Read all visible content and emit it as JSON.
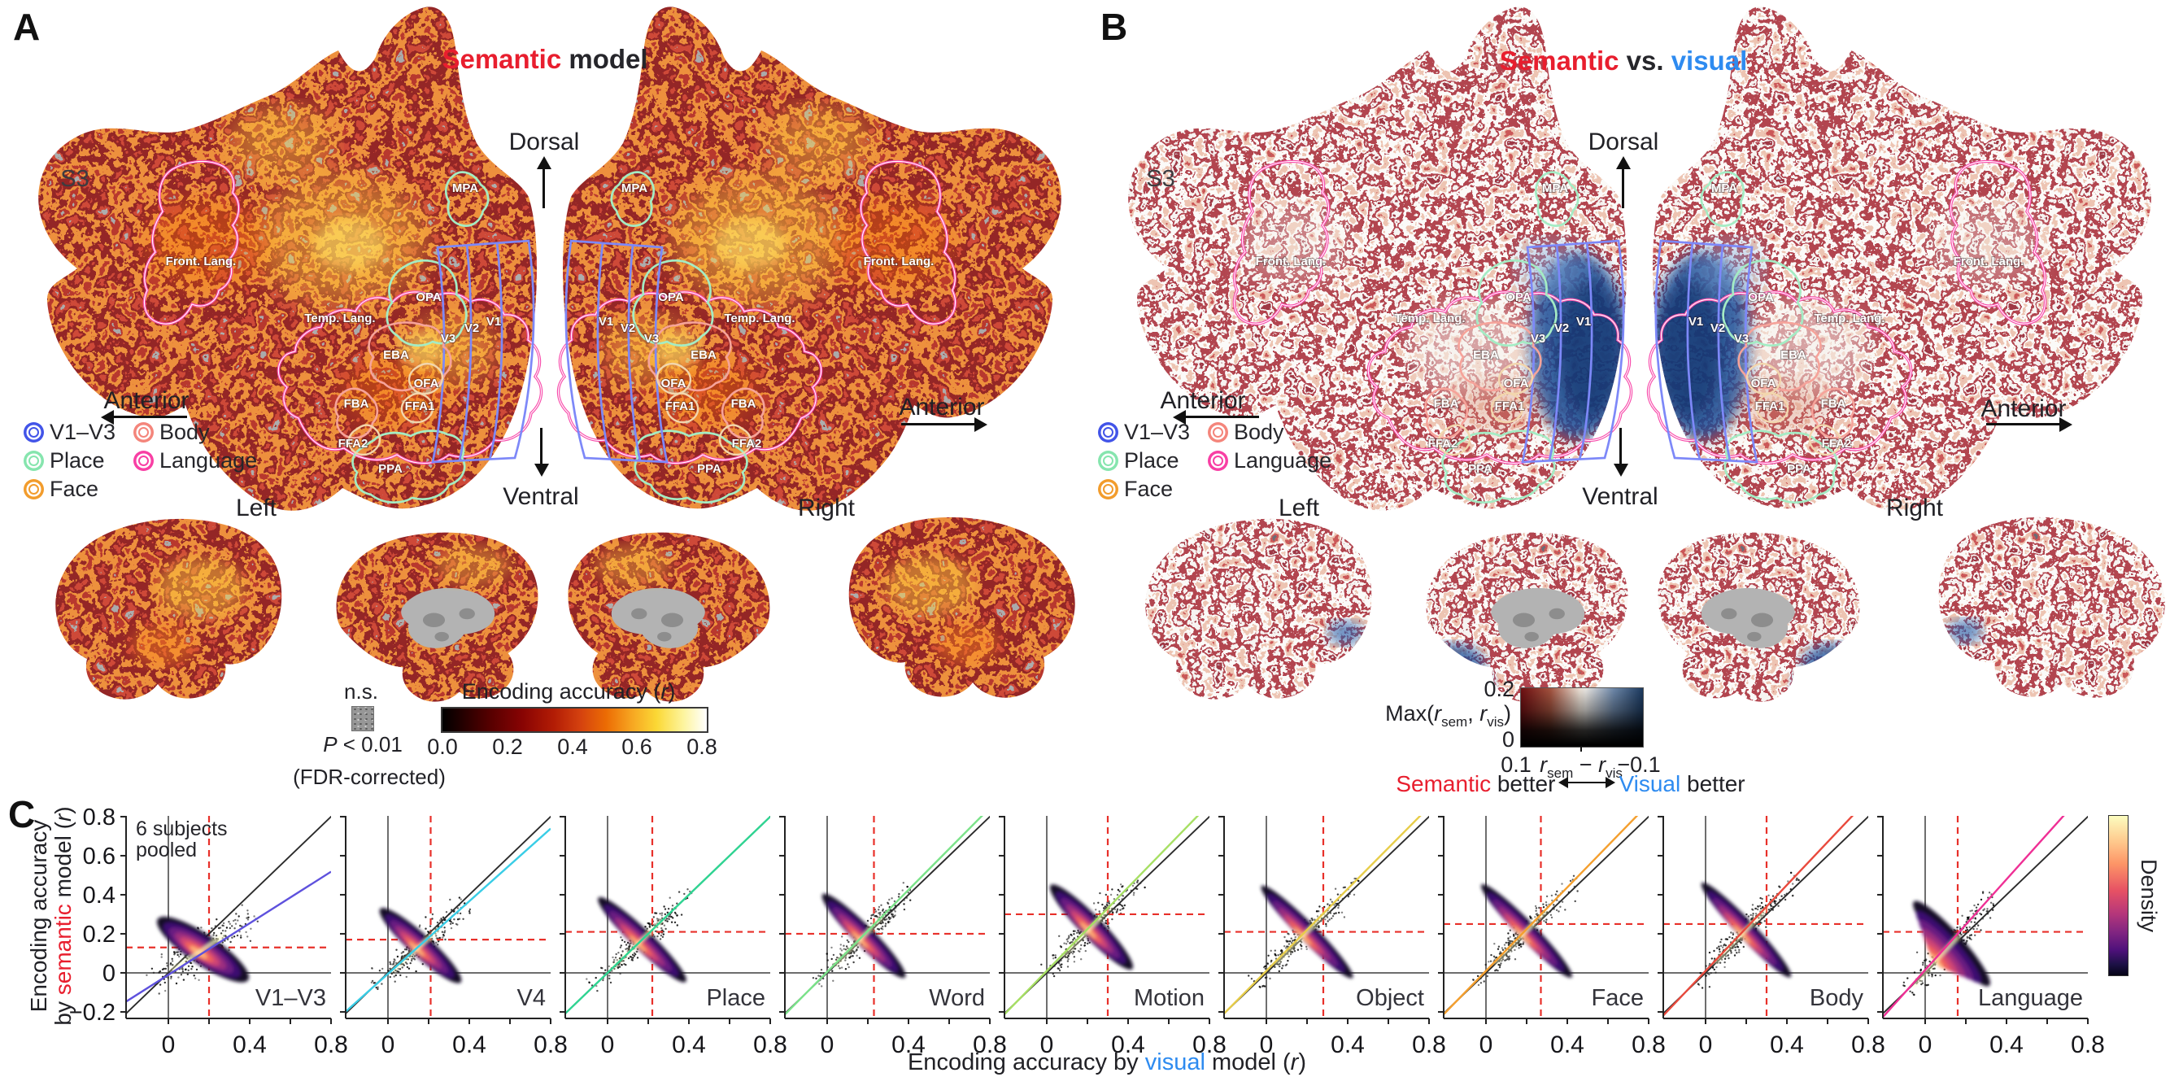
{
  "colors": {
    "semantic_red": "#e81e2e",
    "visual_blue": "#2e8bf0",
    "crosshair_red": "#e8302a",
    "identity_gray": "#2b2b2b",
    "zero_line_gray": "#6e6e6e"
  },
  "panelA": {
    "panel_label": "A",
    "subject": "S3",
    "title": {
      "semantic": "Semantic",
      "rest": " model"
    },
    "directions": {
      "dorsal": "Dorsal",
      "ventral": "Ventral",
      "anterior_left": "Anterior",
      "anterior_right": "Anterior"
    },
    "hemispheres": {
      "left": "Left",
      "right": "Right"
    },
    "legend": [
      {
        "label": "V1–V3",
        "color": "#4254e8"
      },
      {
        "label": "Body",
        "color": "#f4857b"
      },
      {
        "label": "Place",
        "color": "#86e5ae"
      },
      {
        "label": "Language",
        "color": "#f83fa4"
      },
      {
        "label": "Face",
        "color": "#f29c2c"
      }
    ],
    "rois": {
      "front_lang": "Front. Lang.",
      "temp_lang": "Temp. Lang.",
      "mpa": "MPA",
      "opa": "OPA",
      "ppa": "PPA",
      "v1": "V1",
      "v2": "V2",
      "v3": "V3",
      "eba": "EBA",
      "ofa": "OFA",
      "fba": "FBA",
      "ffa1": "FFA1",
      "ffa2": "FFA2"
    },
    "significance": {
      "ns": "n.s.",
      "p_italic": "P",
      "p_rest": " < 0.01",
      "fdr": "(FDR-corrected)"
    },
    "colorbar": {
      "title_pre": "Encoding accuracy (",
      "title_r": "r",
      "title_post": ")",
      "ticks": [
        "0.0",
        "0.2",
        "0.4",
        "0.6",
        "0.8"
      ]
    }
  },
  "panelB": {
    "panel_label": "B",
    "subject": "S3",
    "title": {
      "semantic": "Semantic",
      "vs": " vs. ",
      "visual": "visual"
    },
    "directions": {
      "dorsal": "Dorsal",
      "ventral": "Ventral",
      "anterior_left": "Anterior",
      "anterior_right": "Anterior"
    },
    "hemispheres": {
      "left": "Left",
      "right": "Right"
    },
    "legend": [
      {
        "label": "V1–V3",
        "color": "#4254e8"
      },
      {
        "label": "Body",
        "color": "#f4857b"
      },
      {
        "label": "Place",
        "color": "#86e5ae"
      },
      {
        "label": "Language",
        "color": "#f83fa4"
      },
      {
        "label": "Face",
        "color": "#f29c2c"
      }
    ],
    "rois": {
      "front_lang": "Front. Lang.",
      "temp_lang": "Temp. Lang.",
      "mpa": "MPA",
      "opa": "OPA",
      "ppa": "PPA",
      "v1": "V1",
      "v2": "V2",
      "v3": "V3",
      "eba": "EBA",
      "ofa": "OFA",
      "fba": "FBA",
      "ffa1": "FFA1",
      "ffa2": "FFA2"
    },
    "colorbar2d": {
      "y_top": "0.2",
      "y_bottom": "0",
      "y_label": {
        "pre": "Max(",
        "r1": "r",
        "sub1": "sem",
        "comma": ", ",
        "r2": "r",
        "sub2": "vis",
        "close": ")"
      },
      "x_left": "0.1",
      "x_label": {
        "r1": "r",
        "sub1": "sem",
        "minus": " − ",
        "r2": "r",
        "sub2": "vis"
      },
      "x_right": "−0.1",
      "caption": {
        "left_word": "Semantic",
        "left_rest": " better",
        "right_word": "Visual",
        "right_rest": " better"
      }
    }
  },
  "panelC": {
    "panel_label": "C"
  },
  "chart_data": {
    "type": "scatter",
    "description": "Density scatter plots of voxelwise encoding accuracy, visual model (x) vs semantic model (y), per ROI",
    "annotation": [
      "6 subjects",
      "pooled"
    ],
    "xlabel_parts": {
      "pre": "Encoding accuracy by ",
      "colored": "visual",
      "mid": " model (",
      "r": "r",
      "close": ")"
    },
    "ylabel_parts": {
      "line1": "Encoding accuracy",
      "line2_pre": "by ",
      "line2_colored": "semantic",
      "line2_mid": " model (",
      "r": "r",
      "close": ")"
    },
    "xlim": [
      -0.208,
      0.8
    ],
    "ylim": [
      -0.233,
      0.804
    ],
    "xtick_values": [
      0,
      0.4,
      0.8
    ],
    "xtick_labels": [
      "0",
      "0.4",
      "0.8"
    ],
    "xtick_minor": [
      0.2,
      0.6
    ],
    "ytick_values": [
      0.8,
      0.6,
      0.4,
      0.2,
      0,
      -0.2
    ],
    "ytick_labels": [
      "0.8",
      "0.6",
      "0.4",
      "0.2",
      "0",
      "−0.2"
    ],
    "identity_line": true,
    "crosshair_color": "#e8302a",
    "density_colorbar": {
      "label": "Density",
      "colors_top_to_bottom": [
        "#fcfdbf",
        "#fe9f6d",
        "#de4968",
        "#8c2981",
        "#3b0f70",
        "#050416"
      ]
    },
    "plots": [
      {
        "label": "V1–V3",
        "fit_color": "#5e51dd",
        "fit_slope": 0.66,
        "fit_intercept": -0.01,
        "vline": 0.2,
        "hline": 0.13,
        "blob": {
          "cx": 0.17,
          "cy": 0.12,
          "len": 0.27,
          "wid": 0.075,
          "slope": 0.7,
          "core_offset": -0.12
        }
      },
      {
        "label": "V4",
        "fit_color": "#39cde6",
        "fit_slope": 0.93,
        "fit_intercept": -0.005,
        "vline": 0.21,
        "hline": 0.17,
        "blob": {
          "cx": 0.16,
          "cy": 0.14,
          "len": 0.27,
          "wid": 0.055,
          "slope": 0.95,
          "core_offset": -0.12
        }
      },
      {
        "label": "Place",
        "fit_color": "#2fd492",
        "fit_slope": 1.0,
        "fit_intercept": 0.0,
        "vline": 0.22,
        "hline": 0.21,
        "blob": {
          "cx": 0.17,
          "cy": 0.17,
          "len": 0.3,
          "wid": 0.05,
          "slope": 1.0,
          "core_offset": -0.12
        }
      },
      {
        "label": "Word",
        "fit_color": "#7be38a",
        "fit_slope": 1.05,
        "fit_intercept": 0.005,
        "vline": 0.23,
        "hline": 0.2,
        "blob": {
          "cx": 0.18,
          "cy": 0.19,
          "len": 0.29,
          "wid": 0.05,
          "slope": 1.05,
          "core_offset": -0.12
        }
      },
      {
        "label": "Motion",
        "fit_color": "#a6df63",
        "fit_slope": 1.07,
        "fit_intercept": 0.01,
        "vline": 0.3,
        "hline": 0.3,
        "blob": {
          "cx": 0.22,
          "cy": 0.235,
          "len": 0.29,
          "wid": 0.055,
          "slope": 1.07,
          "core_offset": -0.1
        }
      },
      {
        "label": "Object",
        "fit_color": "#e7cd49",
        "fit_slope": 1.05,
        "fit_intercept": 0.01,
        "vline": 0.28,
        "hline": 0.21,
        "blob": {
          "cx": 0.2,
          "cy": 0.21,
          "len": 0.32,
          "wid": 0.045,
          "slope": 1.05,
          "core_offset": -0.12
        }
      },
      {
        "label": "Face",
        "fit_color": "#f49f2e",
        "fit_slope": 1.07,
        "fit_intercept": 0.01,
        "vline": 0.27,
        "hline": 0.25,
        "blob": {
          "cx": 0.2,
          "cy": 0.215,
          "len": 0.32,
          "wid": 0.045,
          "slope": 1.07,
          "core_offset": -0.12
        }
      },
      {
        "label": "Body",
        "fit_color": "#e94a3d",
        "fit_slope": 1.1,
        "fit_intercept": 0.01,
        "vline": 0.3,
        "hline": 0.25,
        "blob": {
          "cx": 0.2,
          "cy": 0.22,
          "len": 0.32,
          "wid": 0.045,
          "slope": 1.1,
          "core_offset": -0.12
        }
      },
      {
        "label": "Language",
        "fit_color": "#ef2f95",
        "fit_slope": 1.16,
        "fit_intercept": 0.015,
        "vline": 0.16,
        "hline": 0.21,
        "blob": {
          "cx": 0.13,
          "cy": 0.15,
          "len": 0.28,
          "wid": 0.055,
          "slope": 1.16,
          "core_offset": -0.5
        }
      }
    ]
  }
}
